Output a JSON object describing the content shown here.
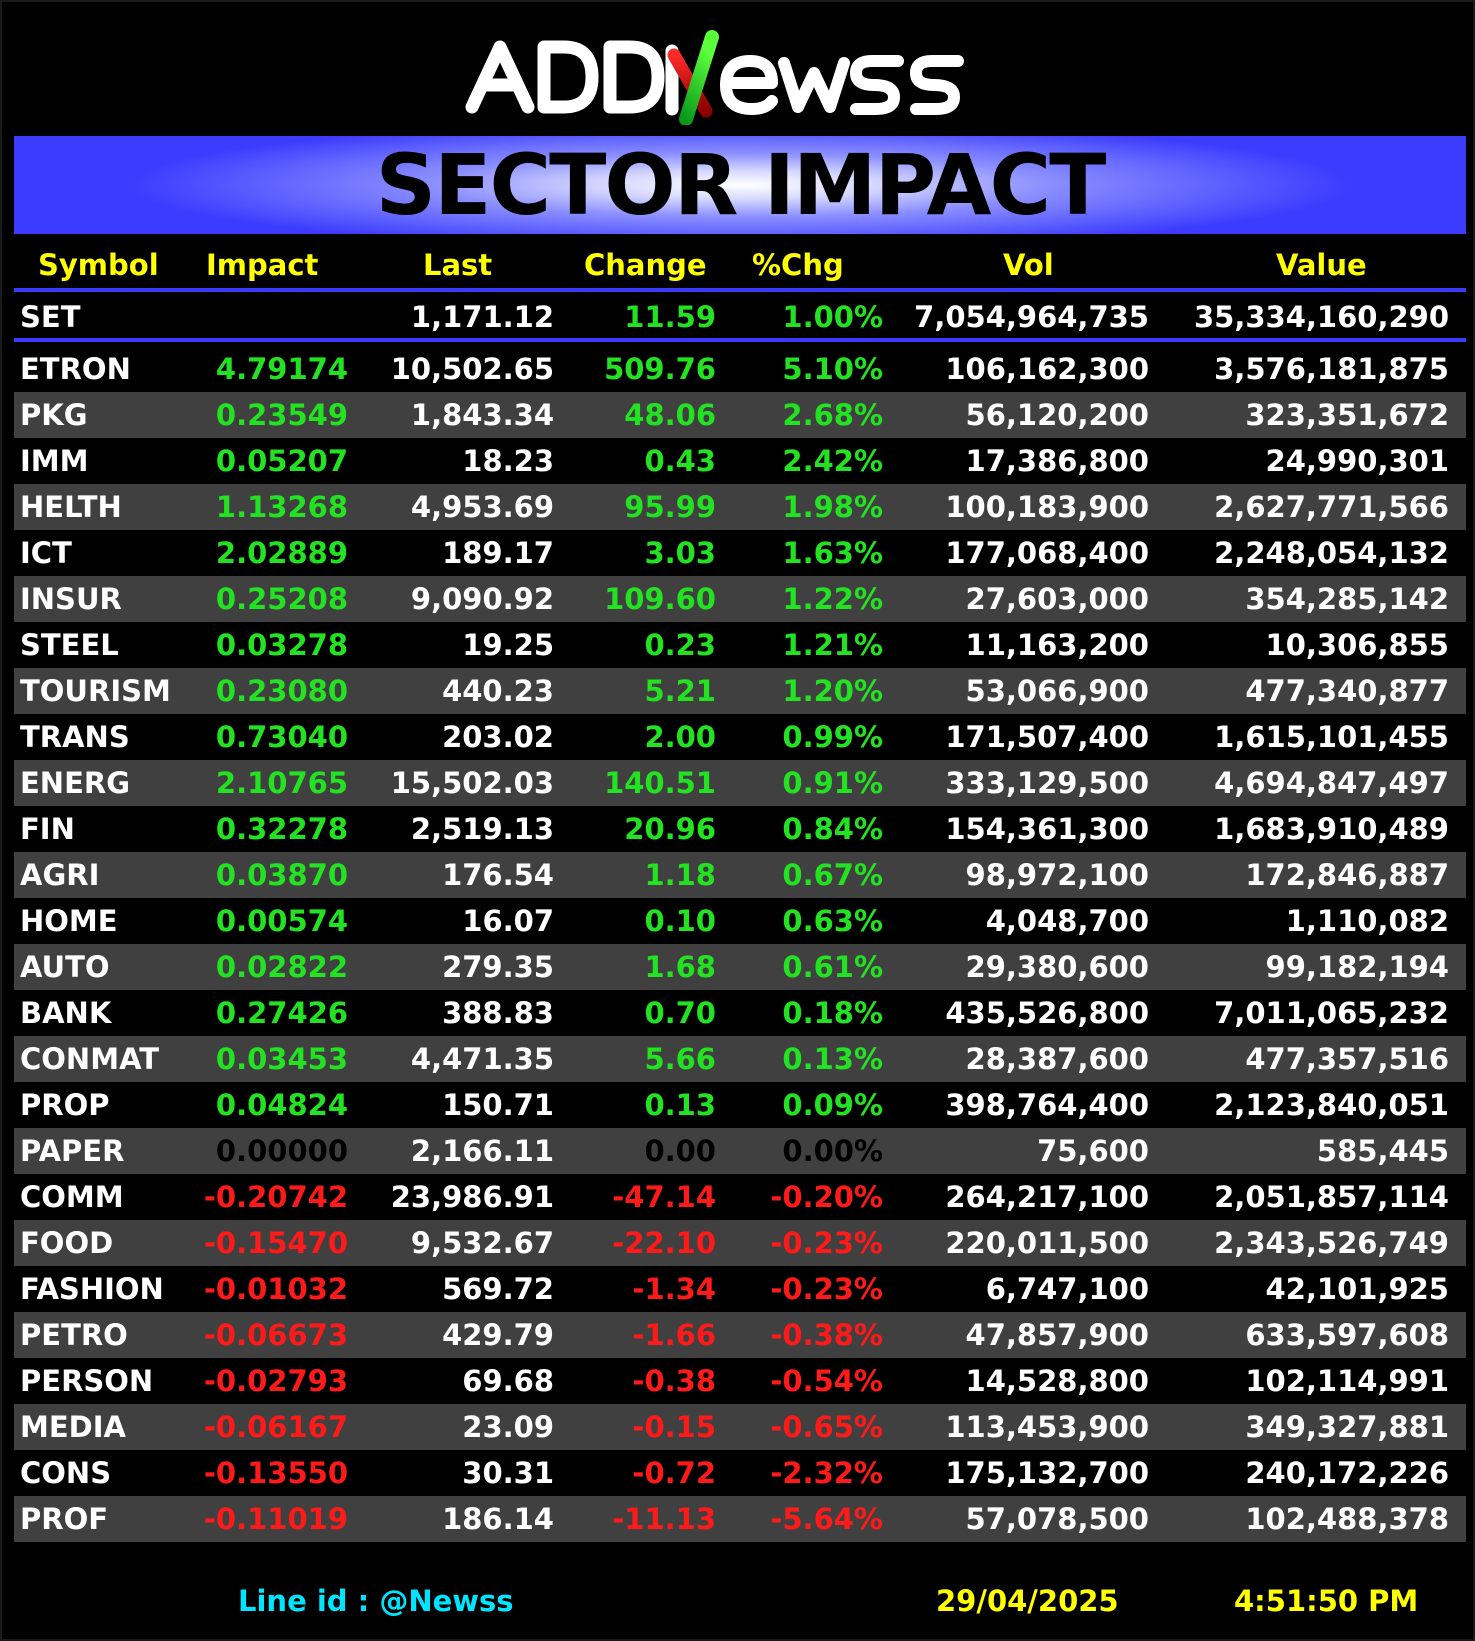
{
  "brand": {
    "logo_text": "ADDNewss"
  },
  "banner": {
    "title": "SECTOR IMPACT"
  },
  "columns": {
    "symbol": "Symbol",
    "impact": "Impact",
    "last": "Last",
    "change": "Change",
    "pct": "%Chg",
    "vol": "Vol",
    "value": "Value"
  },
  "index": {
    "symbol": "SET",
    "impact": "",
    "last": "1,171.12",
    "change": "11.59",
    "pct": "1.00%",
    "vol": "7,054,964,735",
    "value": "35,334,160,290"
  },
  "colors": {
    "positive": "#22e222",
    "negative": "#ff1a1a",
    "neutral": "#000000",
    "accent": "#3a3aff",
    "header": "#ffff00",
    "footer_link": "#00e5ff"
  },
  "rows": [
    {
      "symbol": "ETRON",
      "impact": "4.79174",
      "last": "10,502.65",
      "change": "509.76",
      "pct": "5.10%",
      "vol": "106,162,300",
      "value": "3,576,181,875",
      "dir": "pos"
    },
    {
      "symbol": "PKG",
      "impact": "0.23549",
      "last": "1,843.34",
      "change": "48.06",
      "pct": "2.68%",
      "vol": "56,120,200",
      "value": "323,351,672",
      "dir": "pos"
    },
    {
      "symbol": "IMM",
      "impact": "0.05207",
      "last": "18.23",
      "change": "0.43",
      "pct": "2.42%",
      "vol": "17,386,800",
      "value": "24,990,301",
      "dir": "pos"
    },
    {
      "symbol": "HELTH",
      "impact": "1.13268",
      "last": "4,953.69",
      "change": "95.99",
      "pct": "1.98%",
      "vol": "100,183,900",
      "value": "2,627,771,566",
      "dir": "pos"
    },
    {
      "symbol": "ICT",
      "impact": "2.02889",
      "last": "189.17",
      "change": "3.03",
      "pct": "1.63%",
      "vol": "177,068,400",
      "value": "2,248,054,132",
      "dir": "pos"
    },
    {
      "symbol": "INSUR",
      "impact": "0.25208",
      "last": "9,090.92",
      "change": "109.60",
      "pct": "1.22%",
      "vol": "27,603,000",
      "value": "354,285,142",
      "dir": "pos"
    },
    {
      "symbol": "STEEL",
      "impact": "0.03278",
      "last": "19.25",
      "change": "0.23",
      "pct": "1.21%",
      "vol": "11,163,200",
      "value": "10,306,855",
      "dir": "pos"
    },
    {
      "symbol": "TOURISM",
      "impact": "0.23080",
      "last": "440.23",
      "change": "5.21",
      "pct": "1.20%",
      "vol": "53,066,900",
      "value": "477,340,877",
      "dir": "pos"
    },
    {
      "symbol": "TRANS",
      "impact": "0.73040",
      "last": "203.02",
      "change": "2.00",
      "pct": "0.99%",
      "vol": "171,507,400",
      "value": "1,615,101,455",
      "dir": "pos"
    },
    {
      "symbol": "ENERG",
      "impact": "2.10765",
      "last": "15,502.03",
      "change": "140.51",
      "pct": "0.91%",
      "vol": "333,129,500",
      "value": "4,694,847,497",
      "dir": "pos"
    },
    {
      "symbol": "FIN",
      "impact": "0.32278",
      "last": "2,519.13",
      "change": "20.96",
      "pct": "0.84%",
      "vol": "154,361,300",
      "value": "1,683,910,489",
      "dir": "pos"
    },
    {
      "symbol": "AGRI",
      "impact": "0.03870",
      "last": "176.54",
      "change": "1.18",
      "pct": "0.67%",
      "vol": "98,972,100",
      "value": "172,846,887",
      "dir": "pos"
    },
    {
      "symbol": "HOME",
      "impact": "0.00574",
      "last": "16.07",
      "change": "0.10",
      "pct": "0.63%",
      "vol": "4,048,700",
      "value": "1,110,082",
      "dir": "pos"
    },
    {
      "symbol": "AUTO",
      "impact": "0.02822",
      "last": "279.35",
      "change": "1.68",
      "pct": "0.61%",
      "vol": "29,380,600",
      "value": "99,182,194",
      "dir": "pos"
    },
    {
      "symbol": "BANK",
      "impact": "0.27426",
      "last": "388.83",
      "change": "0.70",
      "pct": "0.18%",
      "vol": "435,526,800",
      "value": "7,011,065,232",
      "dir": "pos"
    },
    {
      "symbol": "CONMAT",
      "impact": "0.03453",
      "last": "4,471.35",
      "change": "5.66",
      "pct": "0.13%",
      "vol": "28,387,600",
      "value": "477,357,516",
      "dir": "pos"
    },
    {
      "symbol": "PROP",
      "impact": "0.04824",
      "last": "150.71",
      "change": "0.13",
      "pct": "0.09%",
      "vol": "398,764,400",
      "value": "2,123,840,051",
      "dir": "pos"
    },
    {
      "symbol": "PAPER",
      "impact": "0.00000",
      "last": "2,166.11",
      "change": "0.00",
      "pct": "0.00%",
      "vol": "75,600",
      "value": "585,445",
      "dir": "zero"
    },
    {
      "symbol": "COMM",
      "impact": "-0.20742",
      "last": "23,986.91",
      "change": "-47.14",
      "pct": "-0.20%",
      "vol": "264,217,100",
      "value": "2,051,857,114",
      "dir": "neg"
    },
    {
      "symbol": "FOOD",
      "impact": "-0.15470",
      "last": "9,532.67",
      "change": "-22.10",
      "pct": "-0.23%",
      "vol": "220,011,500",
      "value": "2,343,526,749",
      "dir": "neg"
    },
    {
      "symbol": "FASHION",
      "impact": "-0.01032",
      "last": "569.72",
      "change": "-1.34",
      "pct": "-0.23%",
      "vol": "6,747,100",
      "value": "42,101,925",
      "dir": "neg"
    },
    {
      "symbol": "PETRO",
      "impact": "-0.06673",
      "last": "429.79",
      "change": "-1.66",
      "pct": "-0.38%",
      "vol": "47,857,900",
      "value": "633,597,608",
      "dir": "neg"
    },
    {
      "symbol": "PERSON",
      "impact": "-0.02793",
      "last": "69.68",
      "change": "-0.38",
      "pct": "-0.54%",
      "vol": "14,528,800",
      "value": "102,114,991",
      "dir": "neg"
    },
    {
      "symbol": "MEDIA",
      "impact": "-0.06167",
      "last": "23.09",
      "change": "-0.15",
      "pct": "-0.65%",
      "vol": "113,453,900",
      "value": "349,327,881",
      "dir": "neg"
    },
    {
      "symbol": "CONS",
      "impact": "-0.13550",
      "last": "30.31",
      "change": "-0.72",
      "pct": "-2.32%",
      "vol": "175,132,700",
      "value": "240,172,226",
      "dir": "neg"
    },
    {
      "symbol": "PROF",
      "impact": "-0.11019",
      "last": "186.14",
      "change": "-11.13",
      "pct": "-5.64%",
      "vol": "57,078,500",
      "value": "102,488,378",
      "dir": "neg"
    }
  ],
  "footer": {
    "line_id": "Line id  : @Newss",
    "date": "29/04/2025",
    "time": "4:51:50 PM"
  }
}
